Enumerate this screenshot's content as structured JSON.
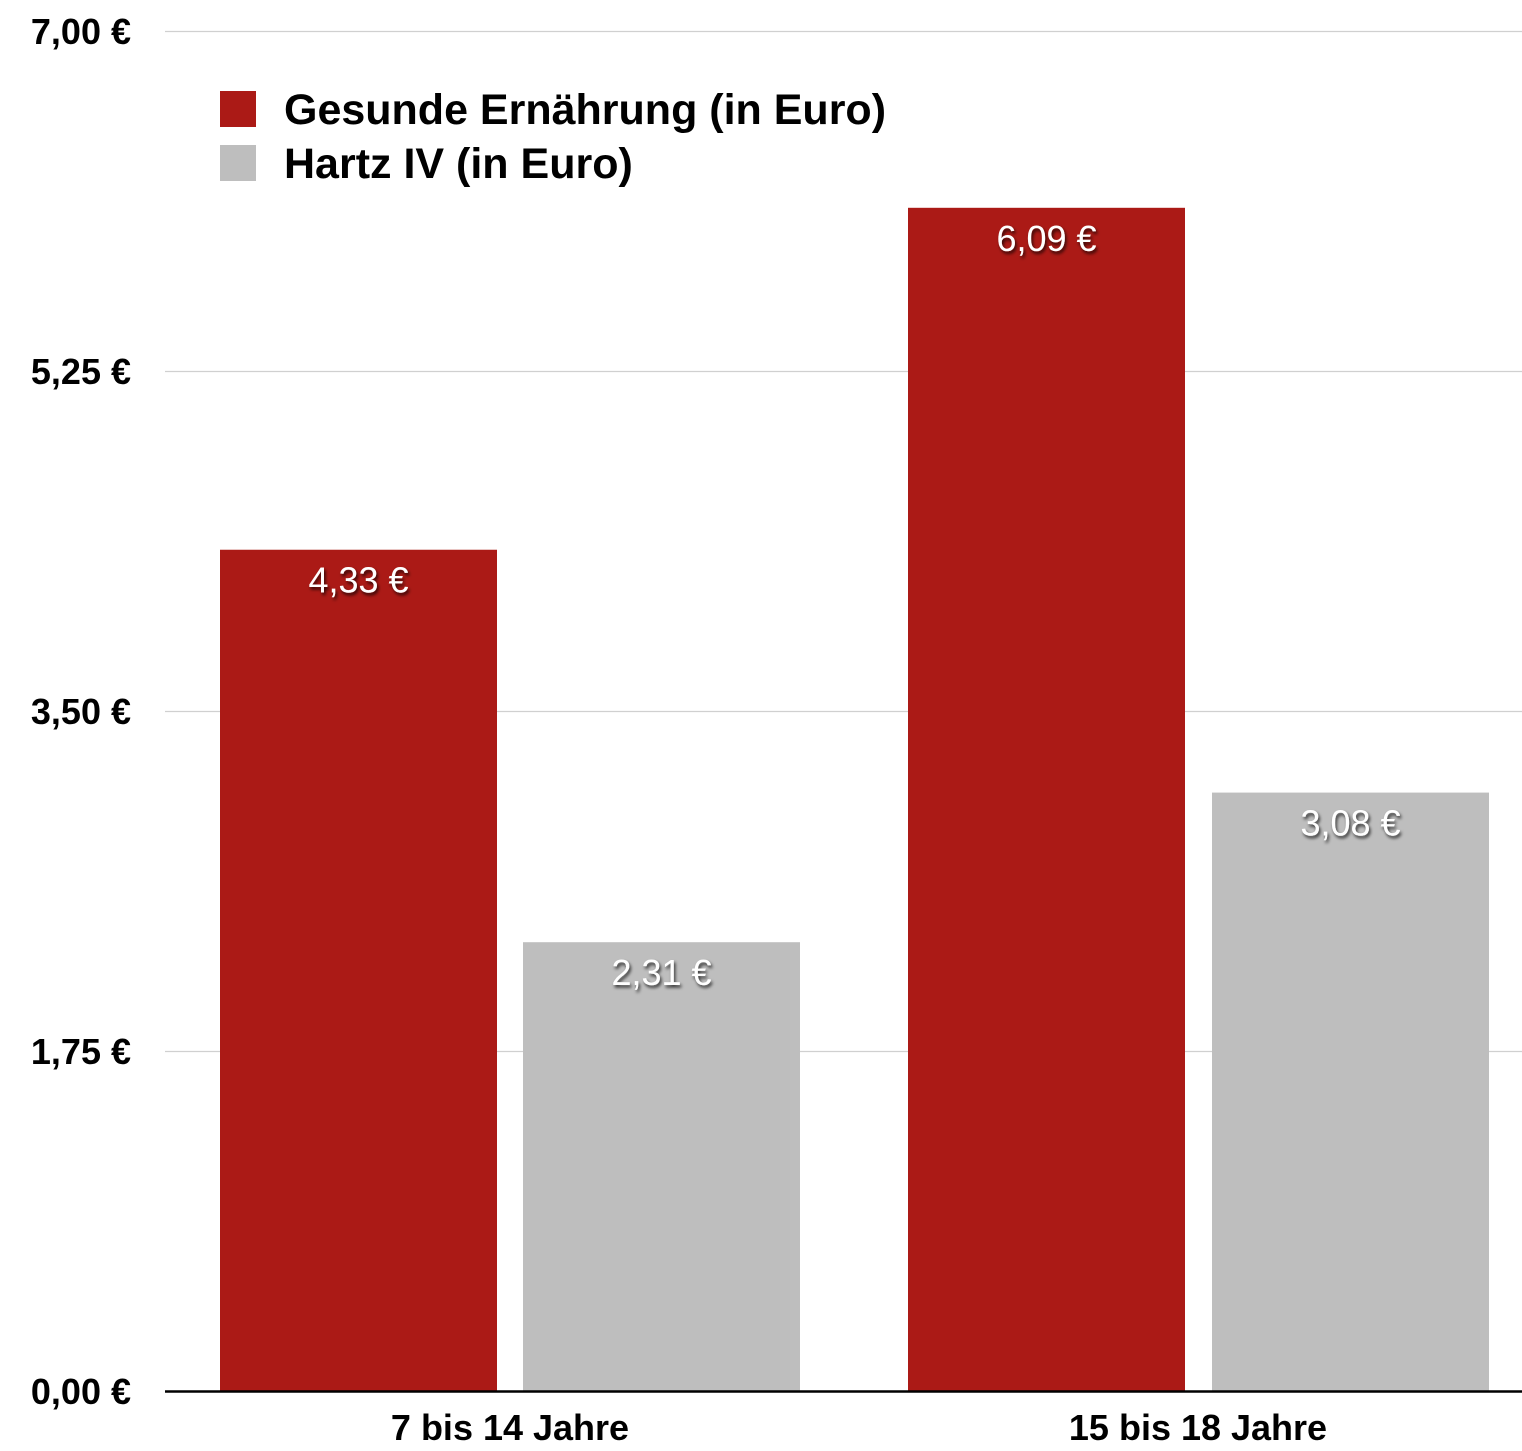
{
  "chart_data": {
    "type": "bar",
    "categories": [
      "7 bis 14 Jahre",
      "15 bis 18 Jahre"
    ],
    "series": [
      {
        "name": "Gesunde Ernährung (in Euro)",
        "values": [
          4.33,
          6.09
        ],
        "value_labels": [
          "4,33 €",
          "6,09 €"
        ],
        "color": "#AB1A16"
      },
      {
        "name": "Hartz IV (in Euro)",
        "values": [
          2.31,
          3.08
        ],
        "value_labels": [
          "2,31 €",
          "3,08 €"
        ],
        "color": "#BEBEBE"
      }
    ],
    "y_ticks": [
      0,
      1.75,
      3.5,
      5.25,
      7
    ],
    "y_tick_labels": [
      "0,00 €",
      "1,75 €",
      "3,50 €",
      "5,25 €",
      "7,00 €"
    ],
    "ylim": [
      0,
      7
    ],
    "grid": true,
    "legend_position": "top-left",
    "title": "",
    "xlabel": "",
    "ylabel": ""
  },
  "colors": {
    "gridline": "#D0D0D0",
    "baseline": "#000000"
  }
}
